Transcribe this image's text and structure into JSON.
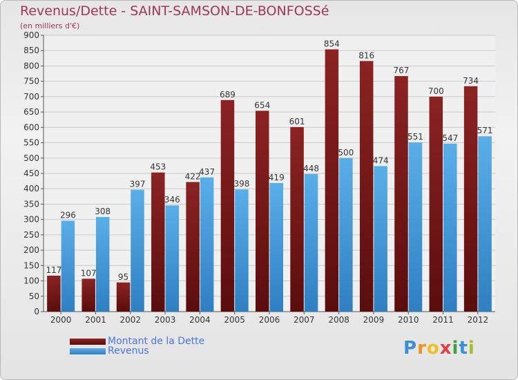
{
  "colors": {
    "debt": "#8b2323",
    "debt_dark": "#5a0d0d",
    "revenue": "#5aaee8",
    "revenue_dark": "#2f7fc2",
    "title": "#a0345a",
    "legend_text": "#4a74e8"
  },
  "chart_data": {
    "type": "bar",
    "title": "Revenus/Dette - SAINT-SAMSON-DE-BONFOSSé",
    "subtitle": "(en milliers d'€)",
    "categories": [
      "2000",
      "2001",
      "2002",
      "2003",
      "2004",
      "2005",
      "2006",
      "2007",
      "2008",
      "2009",
      "2010",
      "2011",
      "2012"
    ],
    "series": [
      {
        "name": "Montant de la Dette",
        "values": [
          117,
          107,
          95,
          453,
          422,
          689,
          654,
          601,
          854,
          816,
          767,
          700,
          734
        ]
      },
      {
        "name": "Revenus",
        "values": [
          296,
          308,
          397,
          346,
          437,
          398,
          419,
          448,
          500,
          474,
          551,
          547,
          571
        ]
      }
    ],
    "ylim": [
      0,
      900
    ],
    "yticks": [
      0,
      50,
      100,
      150,
      200,
      250,
      300,
      350,
      400,
      450,
      500,
      550,
      600,
      650,
      700,
      750,
      800,
      850,
      900
    ],
    "grid": true,
    "legend_position": "bottom-left"
  },
  "logo": {
    "letters": [
      "P",
      "r",
      "o",
      "x",
      "i",
      "t",
      "i"
    ],
    "colors": [
      "#3a8fd8",
      "#f09020",
      "#f0c020",
      "#e04040",
      "#40a040",
      "#3a8fd8",
      "#a0c030"
    ]
  }
}
